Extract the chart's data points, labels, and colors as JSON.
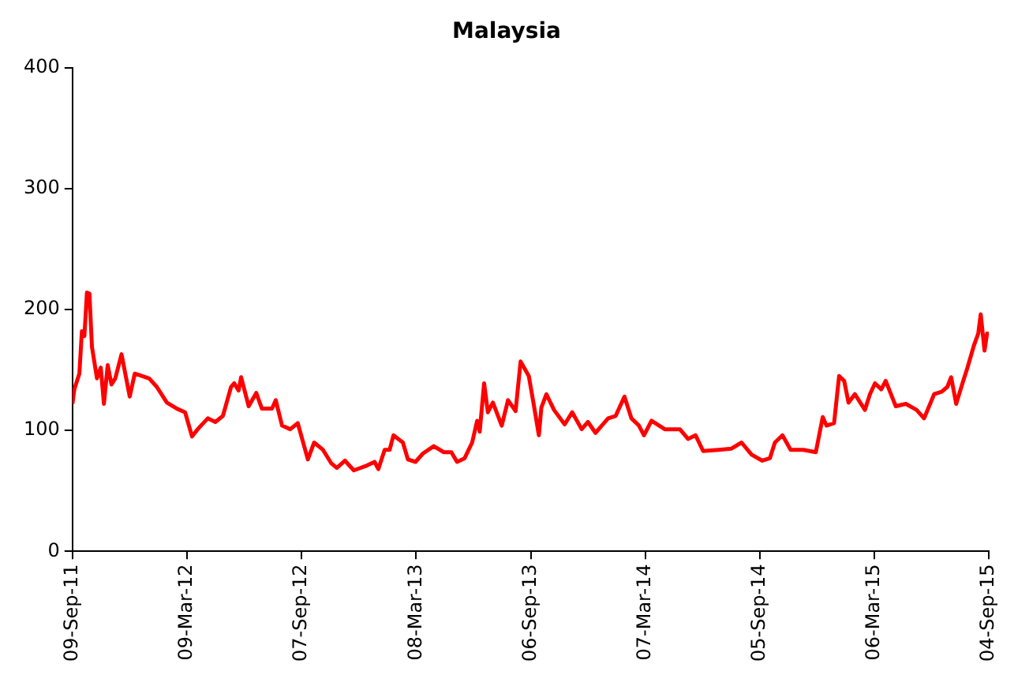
{
  "chart_data": {
    "type": "line",
    "title": "Malaysia",
    "x": [
      "2011-09-09",
      "2011-09-12",
      "2011-09-20",
      "2011-09-24",
      "2011-09-28",
      "2011-10-02",
      "2011-10-06",
      "2011-10-10",
      "2011-10-18",
      "2011-10-24",
      "2011-10-29",
      "2011-11-04",
      "2011-11-10",
      "2011-11-16",
      "2011-11-26",
      "2011-12-09",
      "2011-12-17",
      "2012-01-09",
      "2012-01-21",
      "2012-02-06",
      "2012-02-22",
      "2012-03-06",
      "2012-03-17",
      "2012-03-26",
      "2012-04-11",
      "2012-04-23",
      "2012-05-05",
      "2012-05-18",
      "2012-05-23",
      "2012-05-30",
      "2012-06-03",
      "2012-06-15",
      "2012-06-27",
      "2012-07-06",
      "2012-07-22",
      "2012-07-28",
      "2012-08-07",
      "2012-08-20",
      "2012-09-01",
      "2012-09-17",
      "2012-09-27",
      "2012-10-11",
      "2012-10-24",
      "2012-11-02",
      "2012-11-15",
      "2012-11-29",
      "2012-12-20",
      "2013-01-01",
      "2013-01-07",
      "2013-01-17",
      "2013-01-25",
      "2013-01-31",
      "2013-02-15",
      "2013-02-23",
      "2013-03-07",
      "2013-03-19",
      "2013-04-05",
      "2013-04-21",
      "2013-05-03",
      "2013-05-12",
      "2013-05-24",
      "2013-06-05",
      "2013-06-13",
      "2013-06-17",
      "2013-06-24",
      "2013-06-30",
      "2013-07-08",
      "2013-07-22",
      "2013-08-01",
      "2013-08-13",
      "2013-08-21",
      "2013-09-03",
      "2013-09-11",
      "2013-09-19",
      "2013-09-23",
      "2013-10-01",
      "2013-10-13",
      "2013-10-30",
      "2013-11-11",
      "2013-11-26",
      "2013-12-06",
      "2013-12-18",
      "2014-01-07",
      "2014-01-19",
      "2014-02-02",
      "2014-02-13",
      "2014-02-25",
      "2014-03-05",
      "2014-03-17",
      "2014-04-07",
      "2014-05-01",
      "2014-05-14",
      "2014-05-26",
      "2014-06-07",
      "2014-07-02",
      "2014-07-22",
      "2014-08-07",
      "2014-08-23",
      "2014-09-09",
      "2014-09-21",
      "2014-09-29",
      "2014-10-11",
      "2014-10-24",
      "2014-11-13",
      "2014-12-03",
      "2014-12-14",
      "2014-12-20",
      "2015-01-01",
      "2015-01-09",
      "2015-01-17",
      "2015-01-24",
      "2015-02-03",
      "2015-02-19",
      "2015-02-27",
      "2015-03-07",
      "2015-03-17",
      "2015-03-24",
      "2015-04-09",
      "2015-04-25",
      "2015-05-12",
      "2015-05-24",
      "2015-06-09",
      "2015-06-21",
      "2015-06-30",
      "2015-07-06",
      "2015-07-14",
      "2015-07-24",
      "2015-08-01",
      "2015-08-11",
      "2015-08-18",
      "2015-08-22",
      "2015-08-28",
      "2015-09-01",
      "2015-09-04"
    ],
    "series": [
      {
        "color": "#ff0000",
        "values": [
          122,
          134,
          147,
          182,
          178,
          214,
          213,
          169,
          143,
          152,
          122,
          154,
          138,
          143,
          163,
          128,
          147,
          143,
          136,
          123,
          118,
          115,
          95,
          101,
          110,
          107,
          112,
          136,
          139,
          133,
          144,
          120,
          131,
          118,
          118,
          125,
          104,
          101,
          106,
          76,
          90,
          84,
          73,
          69,
          75,
          67,
          71,
          74,
          68,
          84,
          84,
          96,
          90,
          76,
          74,
          81,
          87,
          82,
          82,
          74,
          77,
          90,
          108,
          99,
          139,
          115,
          123,
          104,
          125,
          116,
          157,
          145,
          121,
          96,
          119,
          130,
          117,
          105,
          115,
          101,
          107,
          98,
          110,
          112,
          128,
          110,
          104,
          96,
          108,
          101,
          101,
          93,
          96,
          83,
          84,
          85,
          90,
          80,
          75,
          77,
          90,
          96,
          84,
          84,
          82,
          111,
          104,
          106,
          145,
          141,
          123,
          130,
          117,
          130,
          139,
          134,
          141,
          120,
          122,
          117,
          110,
          130,
          132,
          136,
          144,
          122,
          139,
          152,
          170,
          180,
          196,
          166,
          180,
          180
        ]
      }
    ],
    "xlim": [
      "2011-09-09",
      "2015-09-04"
    ],
    "xticks": [
      {
        "value": "2011-09-09",
        "label": "09-Sep-11"
      },
      {
        "value": "2012-03-09",
        "label": "09-Mar-12"
      },
      {
        "value": "2012-09-07",
        "label": "07-Sep-12"
      },
      {
        "value": "2013-03-08",
        "label": "08-Mar-13"
      },
      {
        "value": "2013-09-06",
        "label": "06-Sep-13"
      },
      {
        "value": "2014-03-07",
        "label": "07-Mar-14"
      },
      {
        "value": "2014-09-05",
        "label": "05-Sep-14"
      },
      {
        "value": "2015-03-06",
        "label": "06-Mar-15"
      },
      {
        "value": "2015-09-04",
        "label": "04-Sep-15"
      }
    ],
    "ylim": [
      0,
      400
    ],
    "yticks": [
      0,
      100,
      200,
      300,
      400
    ],
    "grid": false,
    "legend": false,
    "marker": "none",
    "line_style": "solid"
  }
}
